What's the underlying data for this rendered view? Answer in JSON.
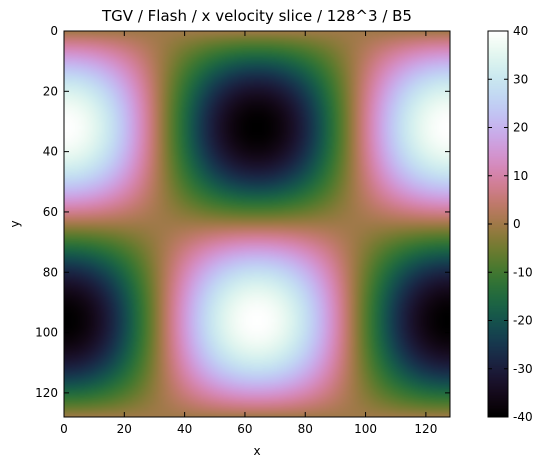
{
  "chart_data": {
    "type": "heatmap",
    "title": "TGV / Flash / x velocity slice / 128^3 / B5",
    "xlabel": "x",
    "ylabel": "y",
    "xlim": [
      0,
      128
    ],
    "ylim": [
      128,
      0
    ],
    "x_ticks": [
      0,
      20,
      40,
      60,
      80,
      100,
      120
    ],
    "y_ticks": [
      0,
      20,
      40,
      60,
      80,
      100,
      120
    ],
    "grid_size": 128,
    "field": "40 * cos(2*pi*x/128) * sin(2*pi*y/128) (x velocity, Taylor-Green vortex)",
    "amplitude": 40,
    "clim": [
      -40,
      40
    ],
    "colormap": "cubehelix",
    "colorbar_ticks": [
      40,
      30,
      20,
      10,
      0,
      -10,
      -20,
      -30,
      -40
    ],
    "extrema": [
      {
        "x": 0,
        "y": 32,
        "value": 40
      },
      {
        "x": 128,
        "y": 32,
        "value": 40
      },
      {
        "x": 64,
        "y": 32,
        "value": -40
      },
      {
        "x": 64,
        "y": 96,
        "value": 40
      },
      {
        "x": 0,
        "y": 96,
        "value": -40
      },
      {
        "x": 128,
        "y": 96,
        "value": -40
      }
    ]
  }
}
